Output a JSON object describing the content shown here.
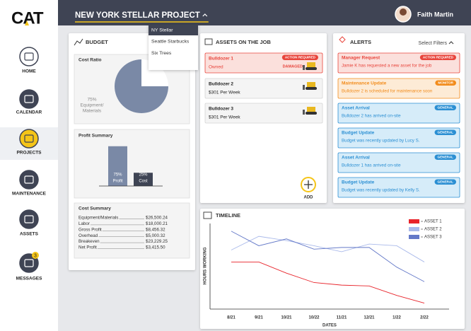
{
  "logo": "CAT",
  "header": {
    "project": "NEW YORK STELLAR PROJECT",
    "user": "Faith Martin"
  },
  "project_menu": [
    "NY Stellar",
    "Seattle Starbucks",
    "Six Trees"
  ],
  "nav": [
    "HOME",
    "CALENDAR",
    "PROJECTS",
    "MAINTENANCE",
    "ASSETS",
    "MESSAGES"
  ],
  "message_badge": 3,
  "budget": {
    "title": "BUDGET",
    "cost_ratio": {
      "title": "Cost Ratio",
      "slice": {
        "value": 75,
        "value_label": "75%",
        "label": [
          "Equipment/",
          "Materials"
        ],
        "color": "#7a89a6"
      }
    },
    "profit_summary": {
      "title": "Profit Summary",
      "bars": [
        {
          "label": "Profit",
          "value": 75,
          "value_label": "75%",
          "color": "#7a89a6"
        },
        {
          "label": "Cost",
          "value": 25,
          "value_label": "25%",
          "color": "#3e4454"
        }
      ]
    },
    "cost_summary": {
      "title": "Cost Summary",
      "rows": [
        [
          "Equipment/Materials",
          "$26,500.24"
        ],
        [
          "Labor",
          "$18,000.21"
        ],
        [
          "Gross Profit",
          "$8,456.32"
        ],
        [
          "Overhead",
          "$5,000.32"
        ],
        [
          "Breakeven",
          "$23,229.25"
        ],
        [
          "Net Profit",
          "$3,415.50"
        ]
      ]
    }
  },
  "assets": {
    "title": "ASSETS ON THE JOB",
    "cards": [
      {
        "name": "Bulldozer 1",
        "detail": "Owned",
        "badge": "ACTION REQUIRED",
        "status": "DAMAGED",
        "color": "#e8453c"
      },
      {
        "name": "Bulldozer 2",
        "detail": "$301 Per Week"
      },
      {
        "name": "Bulldozer 3",
        "detail": "$301 Per Week"
      }
    ],
    "add": "ADD"
  },
  "alerts": {
    "title": "ALERTS",
    "filter": "Select Filters",
    "cards": [
      {
        "title": "Manager Request",
        "badge": "ACTION REQUIRED",
        "text": "Jamie K has requested a new asset for the job",
        "color": "#e8453c"
      },
      {
        "title": "Maintenance Update",
        "badge": "MONITOR",
        "text": "Bulldozer 2 is scheduled for maintenance soon",
        "color": "#f28c1c"
      },
      {
        "title": "Asset Arrival",
        "badge": "GENERAL",
        "text": "Bulldozer 2 has arrived on-site",
        "color": "#2b8fd3"
      },
      {
        "title": "Budget Update",
        "badge": "GENERAL",
        "text": "Budget was recently updated by Lucy S.",
        "color": "#2b8fd3"
      },
      {
        "title": "Asset Arrival",
        "badge": "GENERAL",
        "text": "Bulldozer 1 has arrived on-site",
        "color": "#2b8fd3"
      },
      {
        "title": "Budget Update",
        "badge": "GENERAL",
        "text": "Budget was recently updated by Kelly S.",
        "color": "#2b8fd3"
      }
    ]
  },
  "timeline": {
    "title": "TIMELINE",
    "chart": {
      "type": "line",
      "xlabel": "DATES",
      "ylabel": "HOURS WORKING",
      "categories": [
        "8/21",
        "9/21",
        "10/21",
        "10/22",
        "11/21",
        "12/21",
        "1/22",
        "2/22"
      ],
      "ylim": [
        0,
        100
      ],
      "legend": "upper right",
      "series": [
        {
          "name": "ASSET 1",
          "color": "#e8232a",
          "values": [
            55,
            55,
            42,
            31,
            28,
            27,
            16,
            7
          ]
        },
        {
          "name": "ASSET 2",
          "color": "#a9b9ea",
          "values": [
            69,
            85,
            80,
            74,
            67,
            76,
            74,
            55
          ]
        },
        {
          "name": "ASSET 3",
          "color": "#6479c8",
          "values": [
            91,
            74,
            82,
            70,
            72,
            72,
            49,
            32
          ]
        }
      ]
    }
  }
}
